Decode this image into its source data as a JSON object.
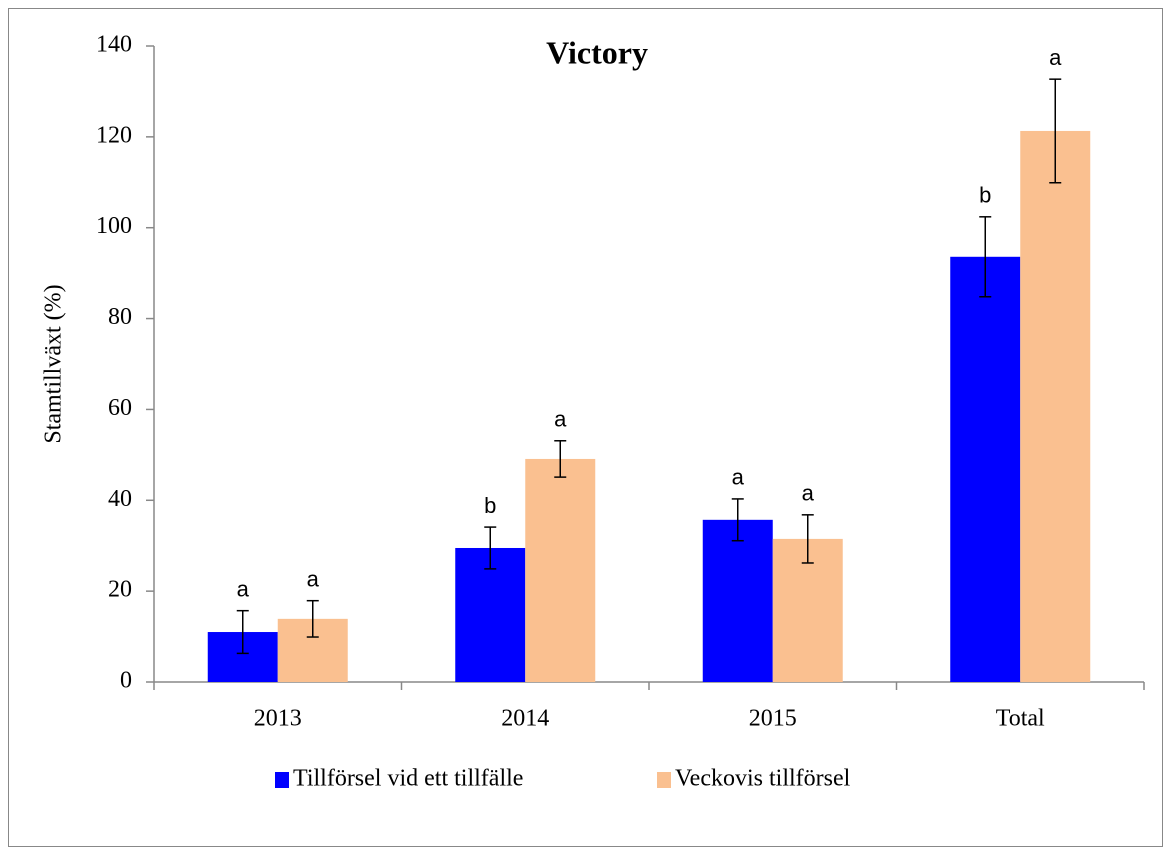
{
  "chart_data": {
    "type": "bar",
    "title": "Victory",
    "y_label": "Stamtillväxt (%)",
    "categories": [
      "2013",
      "2014",
      "2015",
      "Total"
    ],
    "series": [
      {
        "name": "Tillförsel vid ett tillfälle",
        "color": "#0000ff",
        "values": [
          11.0,
          29.5,
          35.7,
          93.6
        ],
        "errors": [
          4.7,
          4.6,
          4.6,
          8.8
        ],
        "letters": [
          "a",
          "b",
          "a",
          "b"
        ]
      },
      {
        "name": "Veckovis tillförsel",
        "color": "#fac090",
        "values": [
          13.9,
          49.1,
          31.5,
          121.3
        ],
        "errors": [
          4.0,
          4.0,
          5.3,
          11.4
        ],
        "letters": [
          "a",
          "a",
          "a",
          "a"
        ]
      }
    ],
    "ylim": [
      0,
      140
    ],
    "yticks": [
      0,
      20,
      40,
      60,
      80,
      100,
      120,
      140
    ],
    "grid": false,
    "legend": "bottom"
  }
}
